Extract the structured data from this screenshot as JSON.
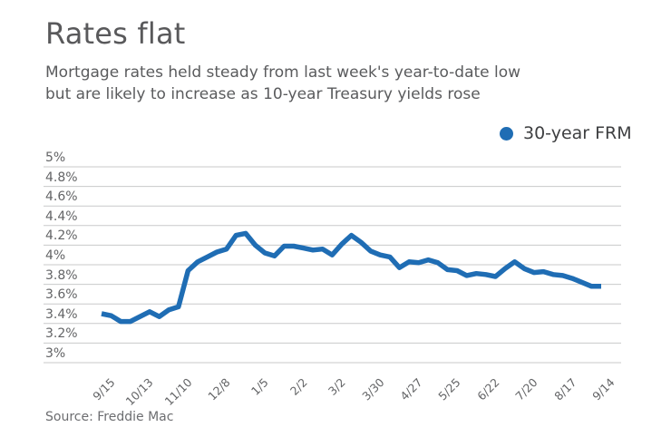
{
  "header": {
    "title": "Rates flat",
    "subtitle_line1": "Mortgage rates held steady from last week's year-to-date low",
    "subtitle_line2": "but are likely to increase as 10-year Treasury yields rose"
  },
  "legend": {
    "label": "30-year FRM",
    "marker_color": "#1f6db4"
  },
  "source_note": "Source: Freddie Mac",
  "colors": {
    "line": "#1f6db4",
    "gridline": "#c8c9ca",
    "text_gray": "#5a5b5d",
    "axis_gray": "#636466"
  },
  "chart_data": {
    "type": "line",
    "title": "Rates flat",
    "xlabel": "",
    "ylabel": "",
    "ylim": [
      3.0,
      5.0
    ],
    "grid": "horizontal",
    "legend_position": "top-right",
    "y_tick_labels": [
      "5%",
      "4.8%",
      "4.6%",
      "4.4%",
      "4.2%",
      "4%",
      "3.8%",
      "3.6%",
      "3.4%",
      "3.2%",
      "3%"
    ],
    "x_tick_labels": [
      "9/15",
      "10/13",
      "11/10",
      "12/8",
      "1/5",
      "2/2",
      "3/2",
      "3/30",
      "4/27",
      "5/25",
      "6/22",
      "7/20",
      "8/17",
      "9/14"
    ],
    "x_tick_interval": 4,
    "series": [
      {
        "name": "30-year FRM",
        "color": "#1f6db4",
        "values": [
          3.5,
          3.48,
          3.42,
          3.42,
          3.47,
          3.52,
          3.47,
          3.54,
          3.57,
          3.94,
          4.03,
          4.08,
          4.13,
          4.16,
          4.3,
          4.32,
          4.2,
          4.12,
          4.09,
          4.19,
          4.19,
          4.17,
          4.15,
          4.16,
          4.1,
          4.21,
          4.3,
          4.23,
          4.14,
          4.1,
          4.08,
          3.97,
          4.03,
          4.02,
          4.05,
          4.02,
          3.95,
          3.94,
          3.89,
          3.91,
          3.9,
          3.88,
          3.96,
          4.03,
          3.96,
          3.92,
          3.93,
          3.9,
          3.89,
          3.86,
          3.82,
          3.78,
          3.78
        ]
      }
    ]
  }
}
